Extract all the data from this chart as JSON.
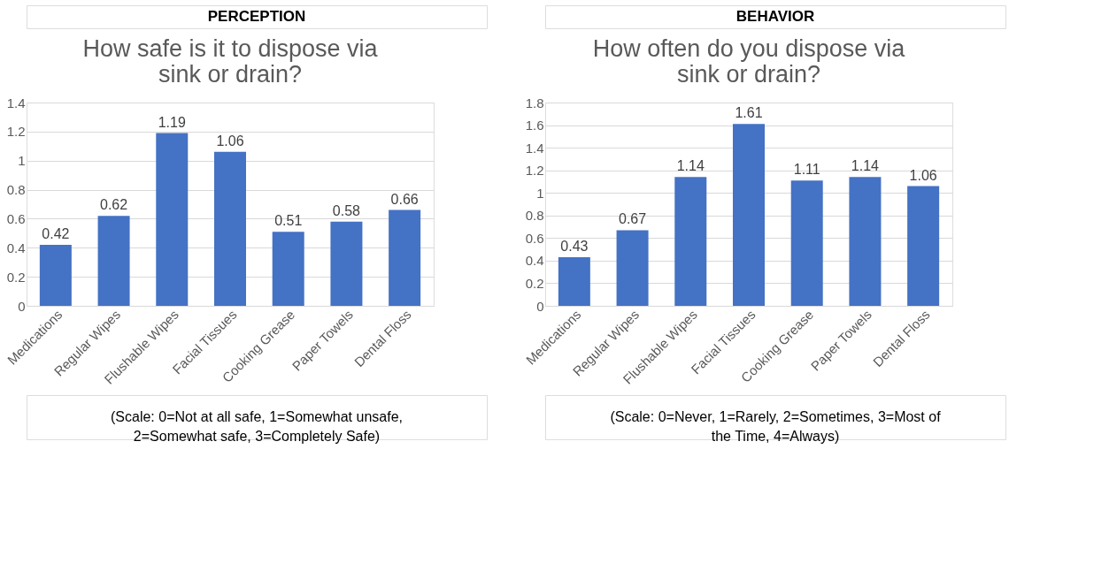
{
  "chart_data": [
    {
      "type": "bar",
      "title": "How safe is it to dispose via sink or drain?",
      "categories": [
        "Medications",
        "Regular Wipes",
        "Flushable Wipes",
        "Facial Tissues",
        "Cooking Grease",
        "Paper Towels",
        "Dental Floss"
      ],
      "values": [
        0.42,
        0.62,
        1.19,
        1.06,
        0.51,
        0.58,
        0.66
      ],
      "color": "#4472c4",
      "ylim": [
        0,
        1.4
      ],
      "yticks": [
        0,
        0.2,
        0.4,
        0.6,
        0.8,
        1,
        1.2,
        1.4
      ],
      "grid": "y",
      "data_labels": true,
      "annotations": [
        "PERCEPTION",
        "(Scale: 0=Not at all safe, 1=Somewhat unsafe, 2=Somewhat safe, 3=Completely Safe)"
      ]
    },
    {
      "type": "bar",
      "title": "How often do you dispose via sink or drain?",
      "categories": [
        "Medications",
        "Regular Wipes",
        "Flushable Wipes",
        "Facial Tissues",
        "Cooking Grease",
        "Paper Towels",
        "Dental Floss"
      ],
      "values": [
        0.43,
        0.67,
        1.14,
        1.61,
        1.11,
        1.14,
        1.06
      ],
      "color": "#4472c4",
      "ylim": [
        0,
        1.8
      ],
      "yticks": [
        0,
        0.2,
        0.4,
        0.6,
        0.8,
        1,
        1.2,
        1.4,
        1.6,
        1.8
      ],
      "grid": "y",
      "data_labels": true,
      "annotations": [
        "BEHAVIOR",
        "(Scale: 0=Never, 1=Rarely, 2=Sometimes, 3=Most of the Time, 4=Always)"
      ]
    }
  ]
}
